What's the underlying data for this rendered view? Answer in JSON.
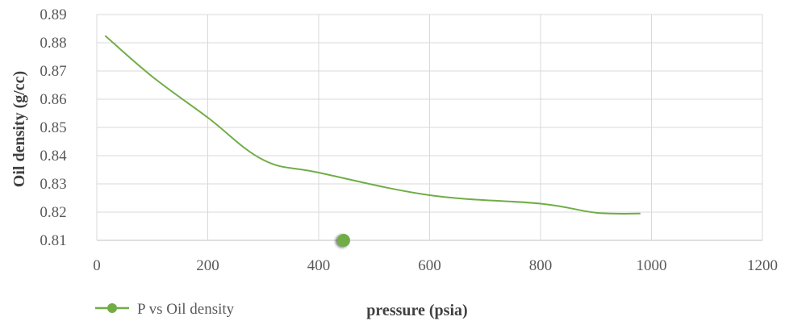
{
  "chart_data": {
    "type": "line",
    "title": "",
    "xlabel": "pressure (psia)",
    "ylabel": "Oil density (g/cc)",
    "xlim": [
      0,
      1200
    ],
    "ylim": [
      0.81,
      0.89
    ],
    "x_ticks": [
      "0",
      "200",
      "400",
      "600",
      "800",
      "1000",
      "1200"
    ],
    "y_ticks": [
      "0.81",
      "0.82",
      "0.83",
      "0.84",
      "0.85",
      "0.86",
      "0.87",
      "0.88",
      "0.89"
    ],
    "grid": true,
    "legend_position": "bottom-left",
    "series": [
      {
        "name": "P vs Oil density",
        "color": "#70ad47",
        "marker_color": "#70ad47",
        "x": [
          15,
          100,
          200,
          300,
          400,
          600,
          800,
          900,
          980
        ],
        "y": [
          0.8825,
          0.868,
          0.8535,
          0.8385,
          0.834,
          0.826,
          0.823,
          0.8198,
          0.8195
        ]
      }
    ],
    "annotations": [
      {
        "type": "marker",
        "x": 445,
        "y": 0.81,
        "color": "#70ad47"
      }
    ]
  }
}
